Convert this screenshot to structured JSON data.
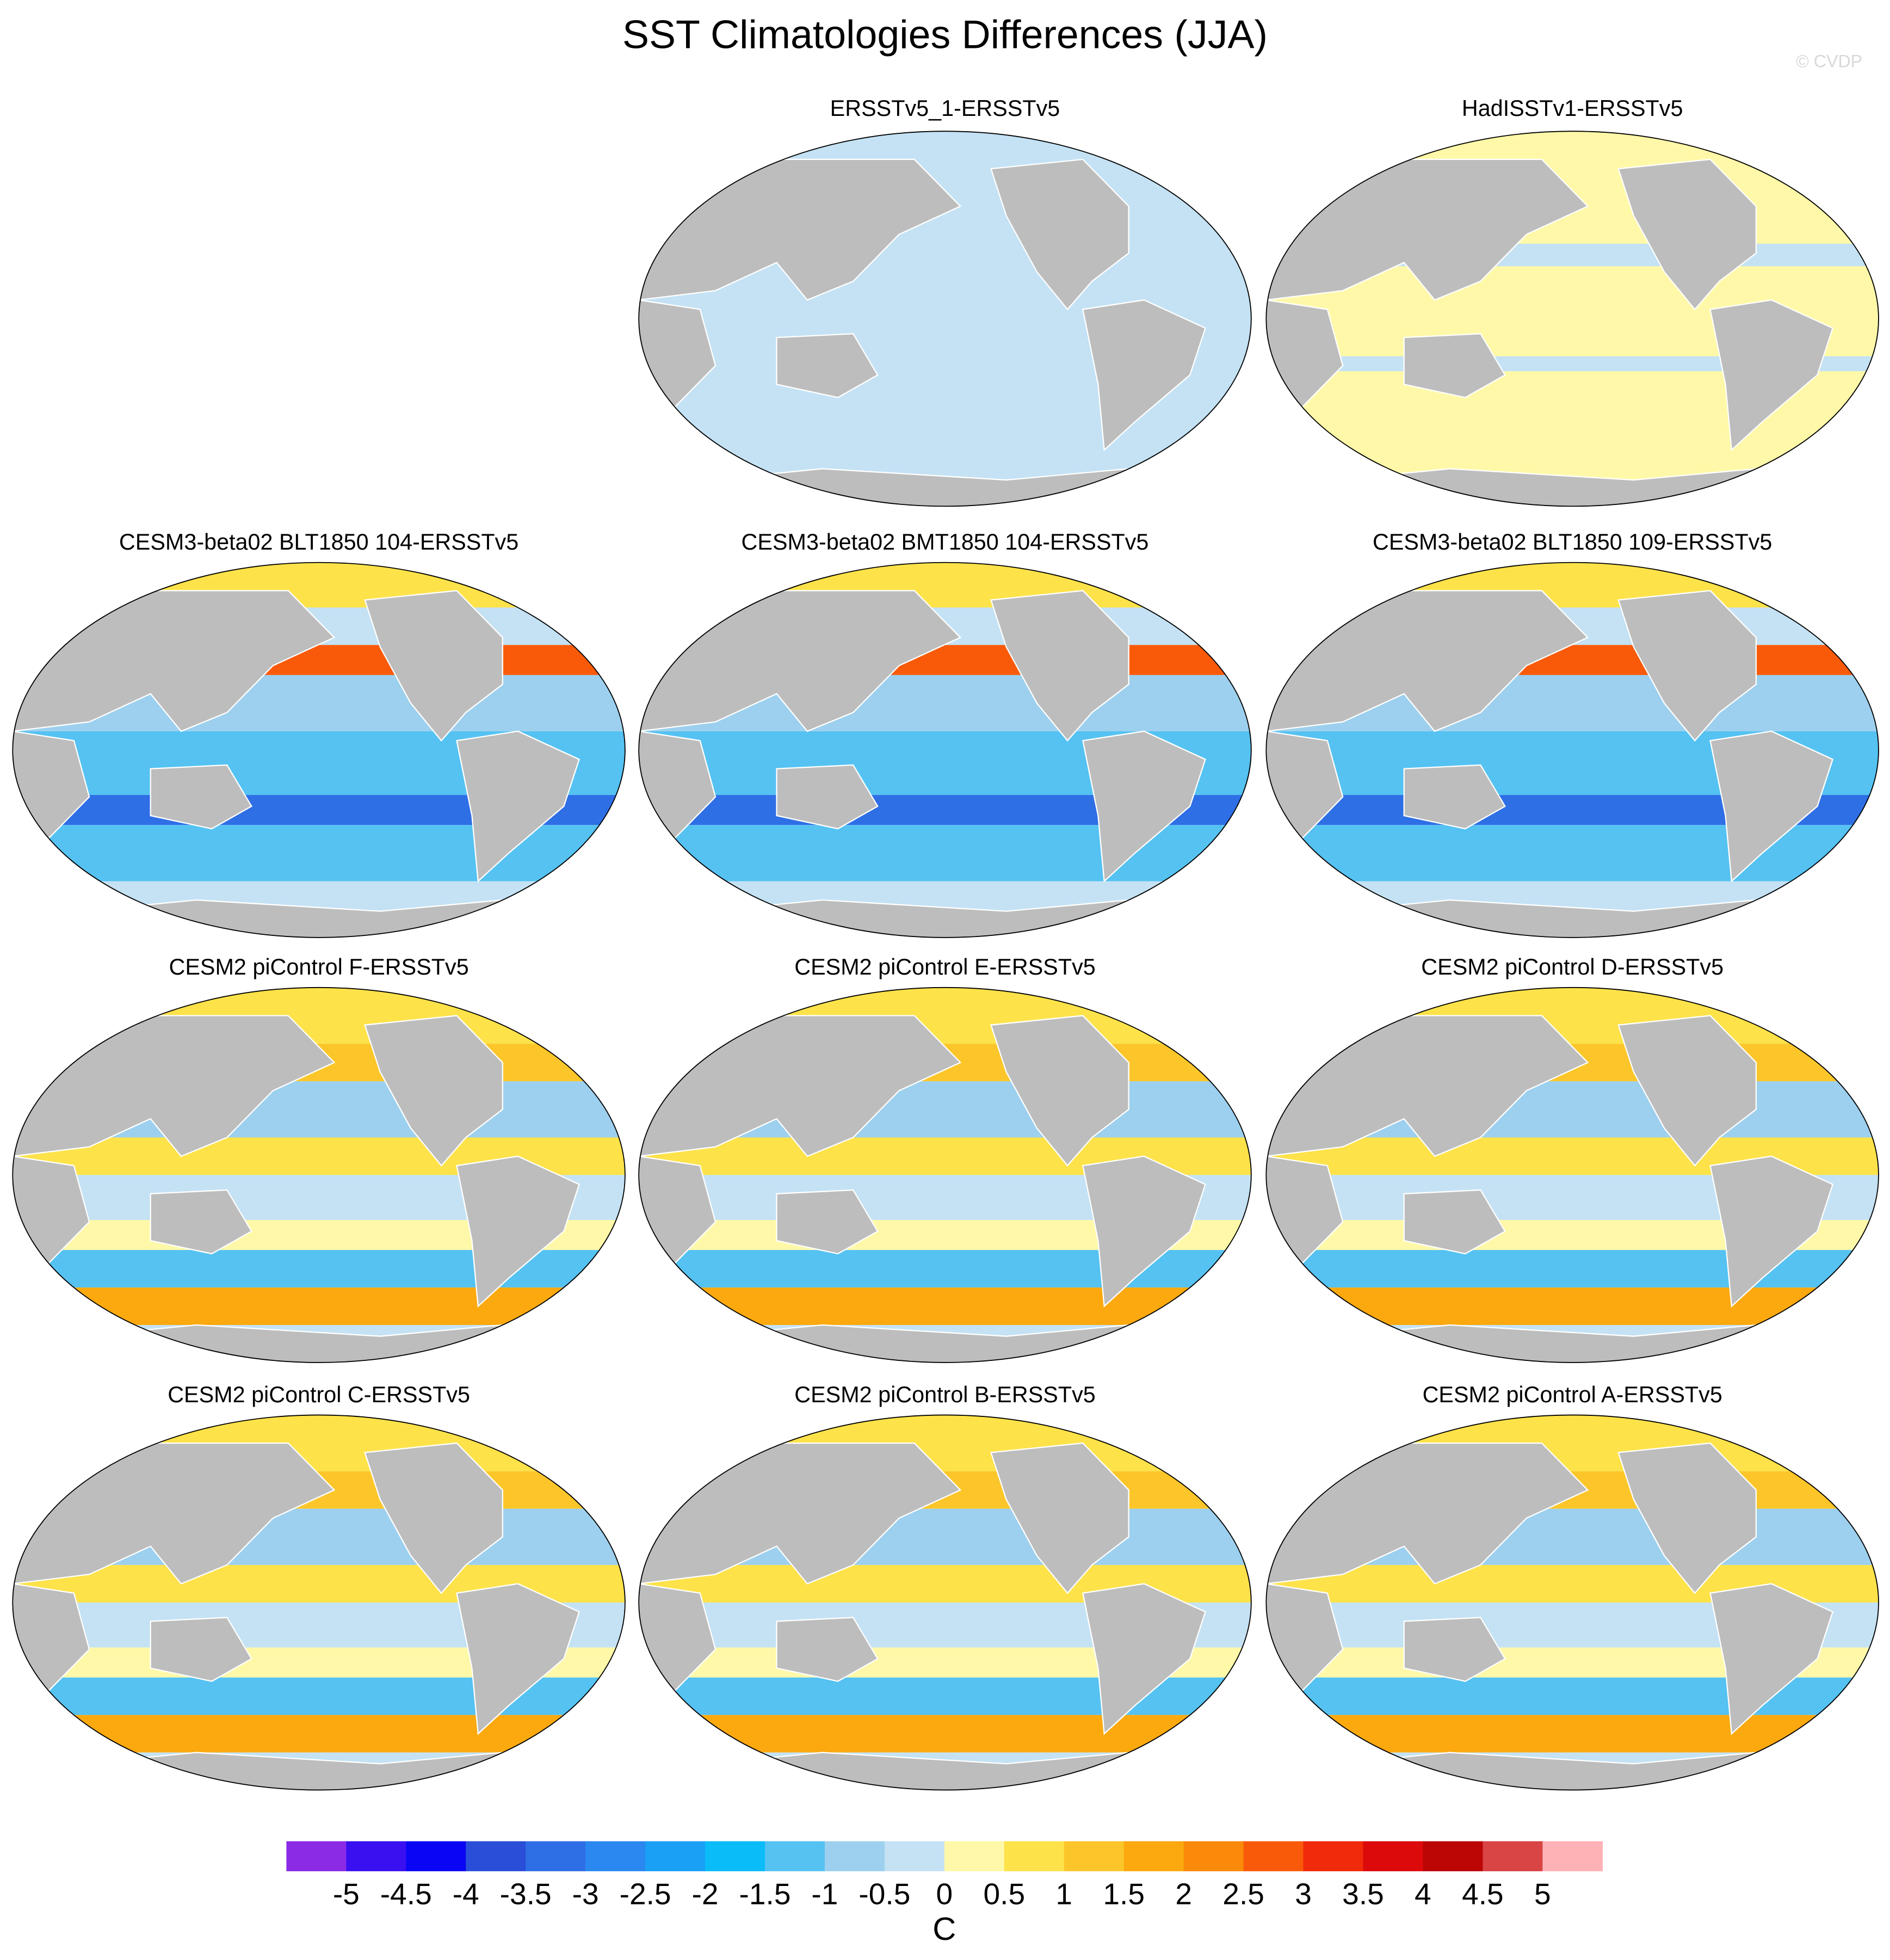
{
  "title": "SST Climatologies Differences (JJA)",
  "watermark": "© CVDP",
  "panels": [
    {
      "title": "ERSSTv5_1-ERSSTv5"
    },
    {
      "title": "HadISSTv1-ERSSTv5"
    },
    {
      "title": "CESM3-beta02 BLT1850 104-ERSSTv5"
    },
    {
      "title": "CESM3-beta02 BMT1850 104-ERSSTv5"
    },
    {
      "title": "CESM3-beta02 BLT1850 109-ERSSTv5"
    },
    {
      "title": "CESM2 piControl F-ERSSTv5"
    },
    {
      "title": "CESM2 piControl E-ERSSTv5"
    },
    {
      "title": "CESM2 piControl D-ERSSTv5"
    },
    {
      "title": "CESM2 piControl C-ERSSTv5"
    },
    {
      "title": "CESM2 piControl B-ERSSTv5"
    },
    {
      "title": "CESM2 piControl A-ERSSTv5"
    }
  ],
  "colorbar": {
    "colors": [
      "#8b2be6",
      "#3a10f0",
      "#0a05f5",
      "#2a4ed8",
      "#2f6fe6",
      "#2a88f0",
      "#1aa0f5",
      "#0abcf8",
      "#55c2f2",
      "#9dd0ee",
      "#c4e2f4",
      "#fff8a8",
      "#fde24a",
      "#fcc62a",
      "#fba90f",
      "#fb8a0a",
      "#f95a0a",
      "#f02a0a",
      "#dc0a0a",
      "#bc0505",
      "#d94444",
      "#ffb2b6"
    ],
    "labels": [
      -5,
      -4.5,
      -4,
      -3.5,
      -3,
      -2.5,
      -2,
      -1.5,
      -1,
      -0.5,
      0,
      0.5,
      1,
      1.5,
      2,
      2.5,
      3,
      3.5,
      4,
      4.5,
      5
    ],
    "unit": "C"
  }
}
